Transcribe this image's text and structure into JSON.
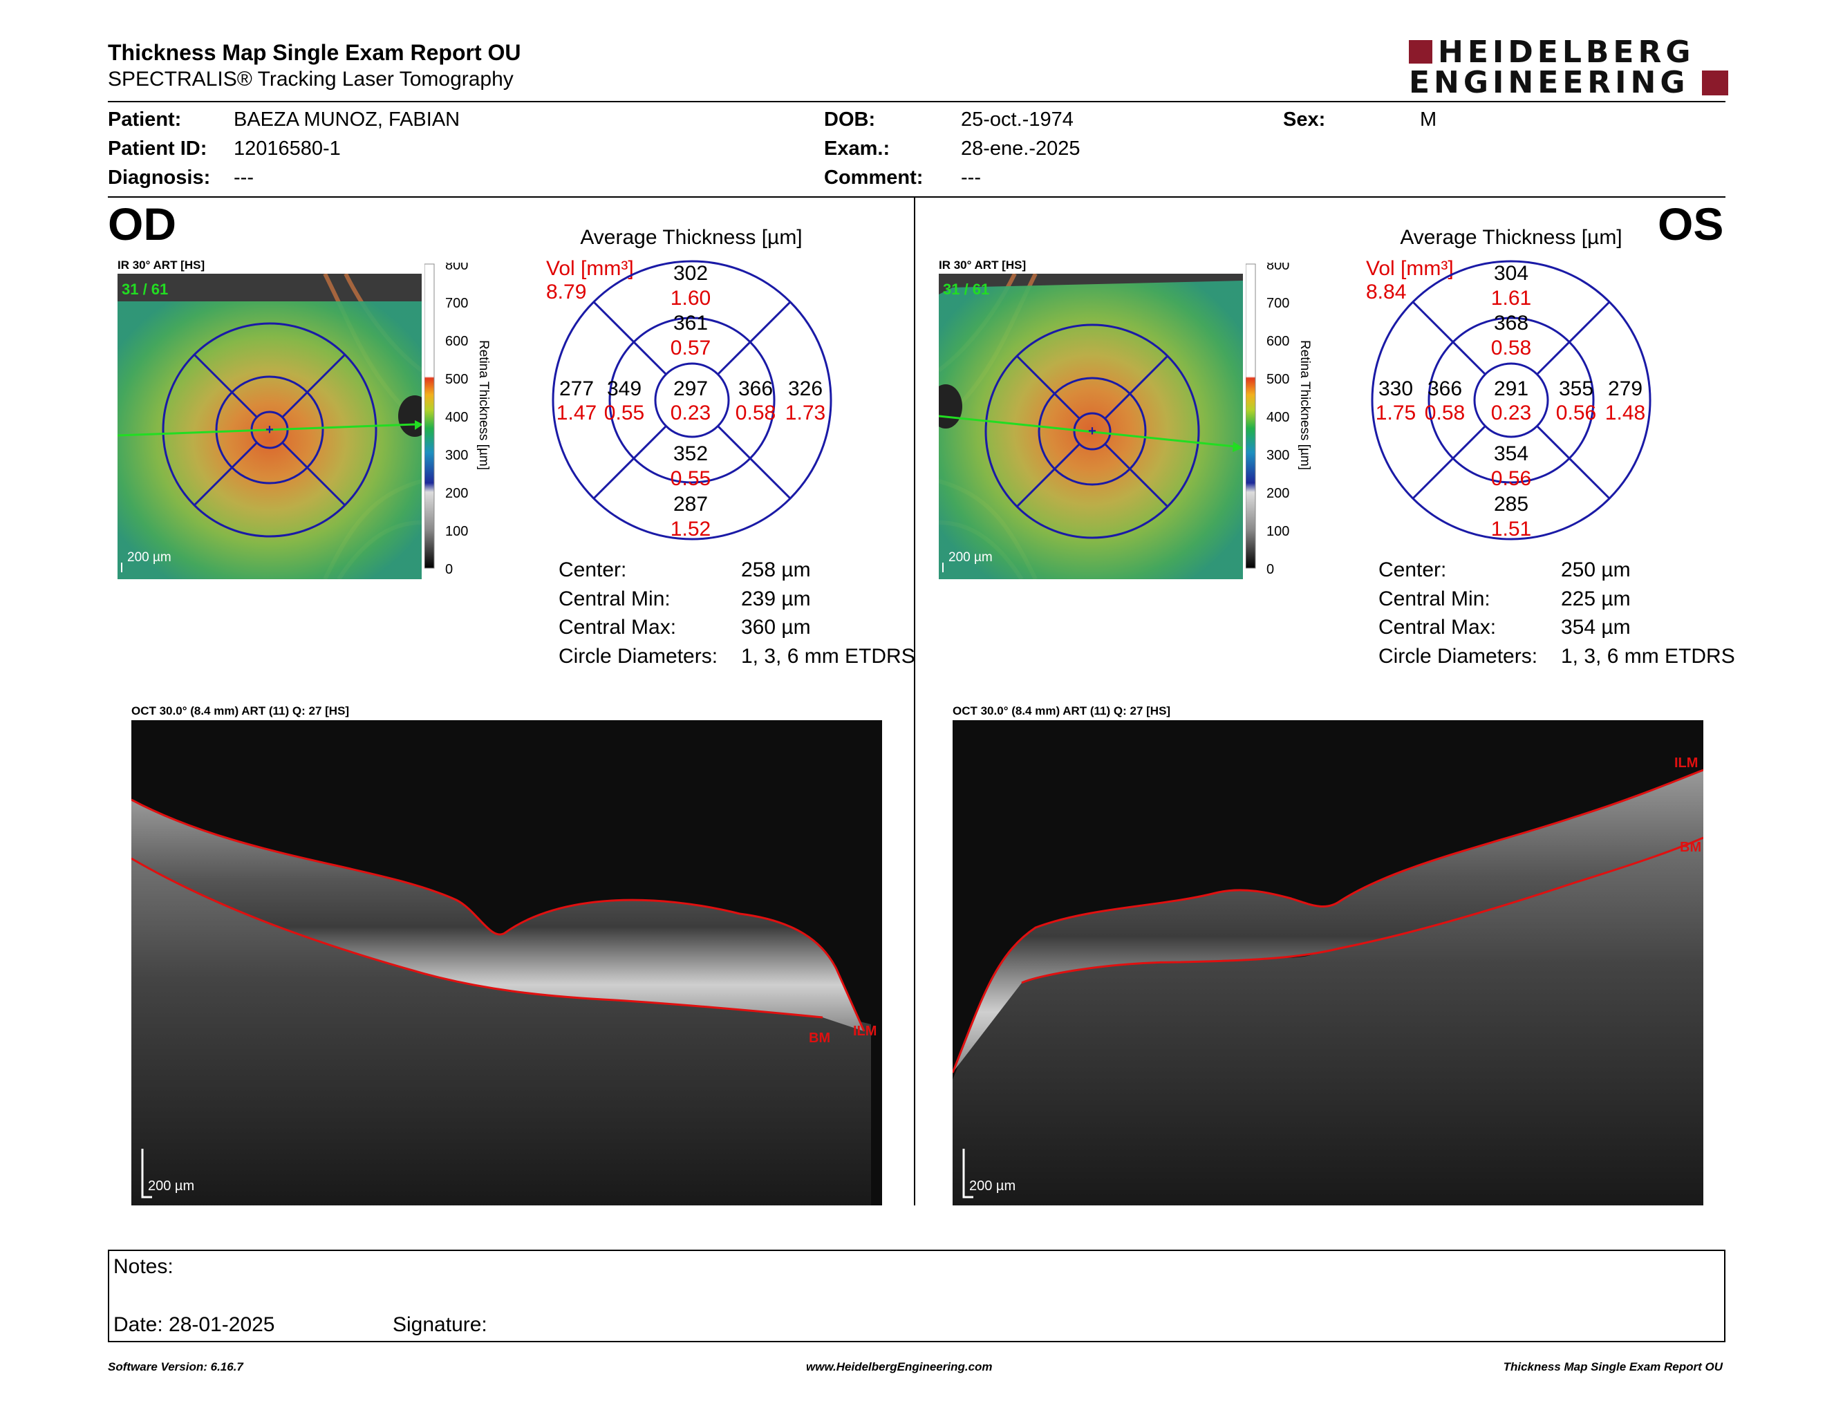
{
  "header": {
    "title": "Thickness Map Single Exam Report OU",
    "subtitle": "SPECTRALIS® Tracking Laser Tomography",
    "logo_line1": "HEIDELBERG",
    "logo_line2": "ENGINEERING"
  },
  "patient": {
    "patient_label": "Patient:",
    "patient_value": "BAEZA MUNOZ, FABIAN",
    "id_label": "Patient ID:",
    "id_value": "12016580-1",
    "diagnosis_label": "Diagnosis:",
    "diagnosis_value": "---",
    "dob_label": "DOB:",
    "dob_value": "25-oct.-1974",
    "exam_label": "Exam.:",
    "exam_value": "28-ene.-2025",
    "comment_label": "Comment:",
    "comment_value": "---",
    "sex_label": "Sex:",
    "sex_value": "M"
  },
  "scale": {
    "title": "Retina Thickness [µm]",
    "ticks": [
      "800",
      "700",
      "600",
      "500",
      "400",
      "300",
      "200",
      "100",
      "0"
    ]
  },
  "od": {
    "eye": "OD",
    "ir_label": "IR 30° ART [HS]",
    "frame": "31 / 61",
    "scalebar": "200 µm",
    "avg_title": "Average Thickness [µm]",
    "vol_label": "Vol [mm³]",
    "vol_total": "8.79",
    "etdrs": {
      "center": [
        "297",
        "0.23"
      ],
      "inner_sup": [
        "361",
        "0.57"
      ],
      "inner_inf": [
        "352",
        "0.55"
      ],
      "inner_nasal_left": [
        "349",
        "0.55"
      ],
      "inner_right": [
        "366",
        "0.58"
      ],
      "outer_sup": [
        "302",
        "1.60"
      ],
      "outer_inf": [
        "287",
        "1.52"
      ],
      "outer_left": [
        "277",
        "1.47"
      ],
      "outer_right": [
        "326",
        "1.73"
      ]
    },
    "stats": {
      "center_label": "Center:",
      "center_value": "258 µm",
      "min_label": "Central Min:",
      "min_value": "239 µm",
      "max_label": "Central Max:",
      "max_value": "360 µm",
      "diam_label": "Circle Diameters:",
      "diam_value": "1, 3, 6 mm ETDRS"
    },
    "oct_label": "OCT 30.0° (8.4 mm) ART (11) Q: 27 [HS]",
    "oct_scalebar": "200 µm",
    "ilm": "ILM",
    "bm": "BM"
  },
  "os": {
    "eye": "OS",
    "ir_label": "IR 30° ART [HS]",
    "frame": "31 / 61",
    "scalebar": "200 µm",
    "avg_title": "Average Thickness [µm]",
    "vol_label": "Vol [mm³]",
    "vol_total": "8.84",
    "etdrs": {
      "center": [
        "291",
        "0.23"
      ],
      "inner_sup": [
        "368",
        "0.58"
      ],
      "inner_inf": [
        "354",
        "0.56"
      ],
      "inner_left": [
        "366",
        "0.58"
      ],
      "inner_right": [
        "355",
        "0.56"
      ],
      "outer_sup": [
        "304",
        "1.61"
      ],
      "outer_inf": [
        "285",
        "1.51"
      ],
      "outer_left": [
        "330",
        "1.75"
      ],
      "outer_right": [
        "279",
        "1.48"
      ]
    },
    "stats": {
      "center_label": "Center:",
      "center_value": "250 µm",
      "min_label": "Central Min:",
      "min_value": "225 µm",
      "max_label": "Central Max:",
      "max_value": "354 µm",
      "diam_label": "Circle Diameters:",
      "diam_value": "1, 3, 6 mm ETDRS"
    },
    "oct_label": "OCT 30.0° (8.4 mm) ART (11) Q: 27 [HS]",
    "oct_scalebar": "200 µm",
    "ilm": "ILM",
    "bm": "BM"
  },
  "notes": {
    "notes_label": "Notes:",
    "date_label": "Date: 28-01-2025",
    "signature_label": "Signature:"
  },
  "footer": {
    "software": "Software Version: 6.16.7",
    "website": "www.HeidelbergEngineering.com",
    "report": "Thickness Map Single Exam Report OU"
  },
  "colors": {
    "logo_red": "#8b1a2b",
    "vol_red": "#e00000",
    "circle_blue": "#1a1aa6",
    "scan_green": "#22dd22",
    "layer_red": "#e01010"
  }
}
